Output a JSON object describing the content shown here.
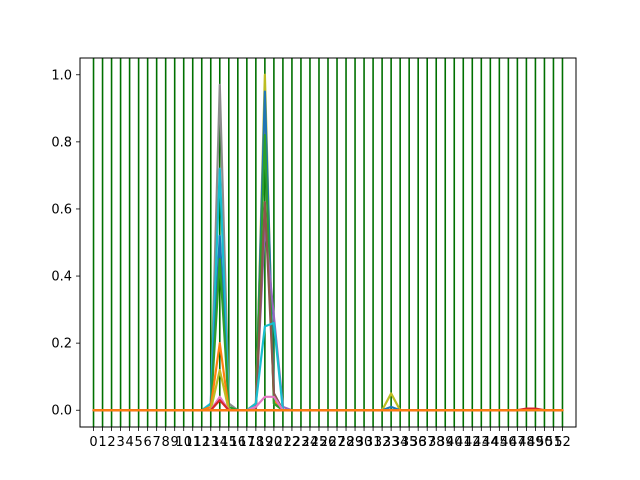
{
  "chart_data": {
    "type": "line",
    "title": "",
    "xlabel": "",
    "ylabel": "",
    "xlim": [
      -1.5,
      53.5
    ],
    "ylim": [
      -0.05,
      1.05
    ],
    "x_ticks": [
      0,
      1,
      2,
      3,
      4,
      5,
      6,
      7,
      8,
      9,
      10,
      11,
      12,
      13,
      14,
      15,
      16,
      17,
      18,
      19,
      20,
      21,
      22,
      23,
      24,
      25,
      26,
      27,
      28,
      29,
      30,
      31,
      32,
      33,
      34,
      35,
      36,
      37,
      38,
      39,
      40,
      41,
      42,
      43,
      44,
      45,
      46,
      47,
      48,
      49,
      50,
      51,
      52
    ],
    "x_tick_labels": [
      "0",
      "1",
      "2",
      "3",
      "4",
      "5",
      "6",
      "7",
      "8",
      "9",
      "10",
      "11",
      "12",
      "13",
      "14",
      "15",
      "16",
      "17",
      "18",
      "19",
      "20",
      "21",
      "22",
      "23",
      "24",
      "25",
      "26",
      "27",
      "28",
      "29",
      "30",
      "31",
      "32",
      "33",
      "34",
      "35",
      "36",
      "37",
      "38",
      "39",
      "40",
      "41",
      "42",
      "43",
      "44",
      "45",
      "46",
      "47",
      "48",
      "49",
      "50",
      "51",
      "52"
    ],
    "y_ticks": [
      0.0,
      0.2,
      0.4,
      0.6,
      0.8,
      1.0
    ],
    "y_tick_labels": [
      "0.0",
      "0.2",
      "0.4",
      "0.6",
      "0.8",
      "1.0"
    ],
    "vlines": {
      "x": [
        0,
        1,
        2,
        3,
        4,
        5,
        6,
        7,
        8,
        9,
        10,
        11,
        12,
        13,
        14,
        15,
        16,
        17,
        18,
        19,
        20,
        21,
        22,
        23,
        24,
        25,
        26,
        27,
        28,
        29,
        30,
        31,
        32,
        33,
        34,
        35,
        36,
        37,
        38,
        39,
        40,
        41,
        42,
        43,
        44,
        45,
        46,
        47,
        48,
        49,
        50,
        51,
        52
      ],
      "color": "#007000"
    },
    "x": [
      0,
      1,
      2,
      3,
      4,
      5,
      6,
      7,
      8,
      9,
      10,
      11,
      12,
      13,
      14,
      15,
      16,
      17,
      18,
      19,
      20,
      21,
      22,
      23,
      24,
      25,
      26,
      27,
      28,
      29,
      30,
      31,
      32,
      33,
      34,
      35,
      36,
      37,
      38,
      39,
      40,
      41,
      42,
      43,
      44,
      45,
      46,
      47,
      48,
      49,
      50,
      51,
      52
    ],
    "series": [
      {
        "color": "#8c8c8c",
        "peaks": {
          "13": 0.01,
          "14": 0.97,
          "15": 0.02
        }
      },
      {
        "color": "#17becf",
        "peaks": {
          "13": 0.02,
          "14": 0.72,
          "15": 0.01
        }
      },
      {
        "color": "#1f77b4",
        "peaks": {
          "13": 0.01,
          "14": 0.52
        }
      },
      {
        "color": "#2ca02c",
        "peaks": {
          "14": 0.45,
          "15": 0.01
        }
      },
      {
        "color": "#ff7f0e",
        "peaks": {
          "13": 0.01,
          "14": 0.2
        }
      },
      {
        "color": "#bcbd22",
        "peaks": {
          "14": 0.12
        }
      },
      {
        "color": "#e377c2",
        "peaks": {
          "14": 0.04
        }
      },
      {
        "color": "#d62728",
        "peaks": {
          "14": 0.03
        }
      },
      {
        "color": "#bcbd22",
        "peaks": {
          "19": 1.0,
          "20": 0.02
        }
      },
      {
        "color": "#ff7f0e",
        "peaks": {
          "18": 0.02,
          "19": 0.9,
          "20": 0.03
        }
      },
      {
        "color": "#1f77b4",
        "peaks": {
          "19": 0.95,
          "20": 0.05
        }
      },
      {
        "color": "#2ca02c",
        "peaks": {
          "18": 0.01,
          "19": 0.82,
          "20": 0.02
        }
      },
      {
        "color": "#9467bd",
        "peaks": {
          "18": 0.01,
          "19": 0.55,
          "20": 0.28,
          "21": 0.01
        }
      },
      {
        "color": "#8c564b",
        "peaks": {
          "19": 0.62,
          "20": 0.05
        }
      },
      {
        "color": "#17becf",
        "peaks": {
          "18": 0.02,
          "19": 0.25,
          "20": 0.26
        }
      },
      {
        "color": "#e377c2",
        "peaks": {
          "18": 0.01,
          "19": 0.04,
          "20": 0.04
        }
      },
      {
        "color": "#bcbd22",
        "peaks": {
          "33": 0.05
        }
      },
      {
        "color": "#1f77b4",
        "peaks": {
          "33": 0.01
        }
      },
      {
        "color": "#d62728",
        "peaks": {
          "48": 0.005,
          "49": 0.005
        }
      },
      {
        "color": "#ff7f0e",
        "peaks": {}
      }
    ],
    "grid": false,
    "legend": "none"
  }
}
